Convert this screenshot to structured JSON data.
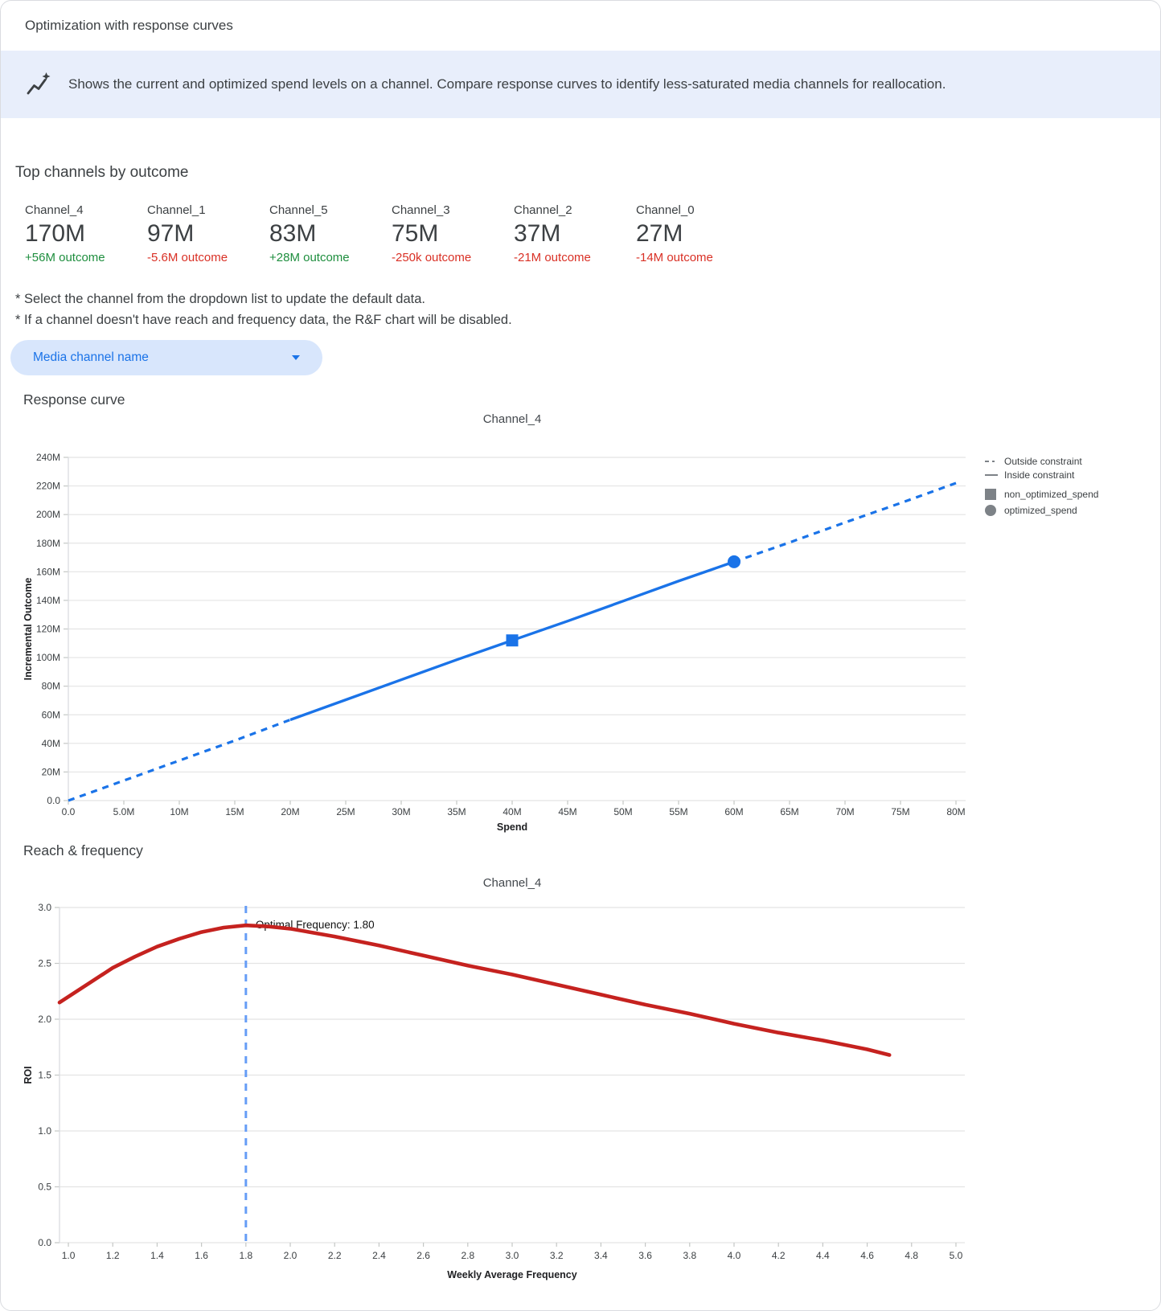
{
  "window": {
    "title": "Optimization with response curves"
  },
  "banner": {
    "icon": "insights-icon",
    "text": "Shows the current and optimized spend levels on a channel. Compare response curves to identify less-saturated media channels for reallocation."
  },
  "top_channels": {
    "heading": "Top channels by outcome",
    "cards": [
      {
        "name": "Channel_4",
        "value": "170M",
        "outcome": "+56M outcome",
        "direction": "positive"
      },
      {
        "name": "Channel_1",
        "value": "97M",
        "outcome": "-5.6M outcome",
        "direction": "negative"
      },
      {
        "name": "Channel_5",
        "value": "83M",
        "outcome": "+28M outcome",
        "direction": "positive"
      },
      {
        "name": "Channel_3",
        "value": "75M",
        "outcome": "-250k outcome",
        "direction": "negative"
      },
      {
        "name": "Channel_2",
        "value": "37M",
        "outcome": "-21M outcome",
        "direction": "negative"
      },
      {
        "name": "Channel_0",
        "value": "27M",
        "outcome": "-14M outcome",
        "direction": "negative"
      }
    ]
  },
  "notes": [
    "* Select the channel from the dropdown list to update the default data.",
    "* If a channel doesn't have reach and frequency data, the R&F chart will be disabled."
  ],
  "dropdown": {
    "label": "Media channel name",
    "icon": "chevron-down-icon"
  },
  "sections": {
    "response_curve": "Response curve",
    "reach_frequency": "Reach & frequency"
  },
  "colors": {
    "accent_blue": "#1a73e8",
    "banner_bg": "#e8eefb",
    "positive_green": "#1e8e3e",
    "negative_red": "#d93025",
    "response_line": "#1a73e8",
    "roi_line": "#c5221f",
    "optimal_freq_line": "#669df6",
    "legend_gray": "#7d8287"
  },
  "chart_data": [
    {
      "type": "line",
      "title": "Channel_4",
      "xlabel": "Spend",
      "ylabel": "Incremental Outcome",
      "unit": "millions",
      "xlim": [
        0,
        80
      ],
      "ylim": [
        0,
        240
      ],
      "x_ticks": [
        {
          "v": 0,
          "label": "0.0"
        },
        {
          "v": 5,
          "label": "5.0M"
        },
        {
          "v": 10,
          "label": "10M"
        },
        {
          "v": 15,
          "label": "15M"
        },
        {
          "v": 20,
          "label": "20M"
        },
        {
          "v": 25,
          "label": "25M"
        },
        {
          "v": 30,
          "label": "30M"
        },
        {
          "v": 35,
          "label": "35M"
        },
        {
          "v": 40,
          "label": "40M"
        },
        {
          "v": 45,
          "label": "45M"
        },
        {
          "v": 50,
          "label": "50M"
        },
        {
          "v": 55,
          "label": "55M"
        },
        {
          "v": 60,
          "label": "60M"
        },
        {
          "v": 65,
          "label": "65M"
        },
        {
          "v": 70,
          "label": "70M"
        },
        {
          "v": 75,
          "label": "75M"
        },
        {
          "v": 80,
          "label": "80M"
        }
      ],
      "y_ticks": [
        {
          "v": 0,
          "label": "0.0"
        },
        {
          "v": 20,
          "label": "20M"
        },
        {
          "v": 40,
          "label": "40M"
        },
        {
          "v": 60,
          "label": "60M"
        },
        {
          "v": 80,
          "label": "80M"
        },
        {
          "v": 100,
          "label": "100M"
        },
        {
          "v": 120,
          "label": "120M"
        },
        {
          "v": 140,
          "label": "140M"
        },
        {
          "v": 160,
          "label": "160M"
        },
        {
          "v": 180,
          "label": "180M"
        },
        {
          "v": 200,
          "label": "200M"
        },
        {
          "v": 220,
          "label": "220M"
        },
        {
          "v": 240,
          "label": "240M"
        }
      ],
      "curve_points": [
        [
          0,
          0
        ],
        [
          5,
          14
        ],
        [
          10,
          28
        ],
        [
          15,
          42
        ],
        [
          20,
          56.5
        ],
        [
          25,
          70.5
        ],
        [
          30,
          84.5
        ],
        [
          35,
          98.5
        ],
        [
          40,
          112
        ],
        [
          45,
          125.5
        ],
        [
          50,
          139.5
        ],
        [
          55,
          153.5
        ],
        [
          60,
          167
        ],
        [
          65,
          180.5
        ],
        [
          70,
          194.5
        ],
        [
          75,
          208
        ],
        [
          80,
          222
        ]
      ],
      "constraint_range": [
        20,
        60
      ],
      "points": {
        "non_optimized_spend": {
          "spend": 40,
          "outcome": 112
        },
        "optimized_spend": {
          "spend": 60,
          "outcome": 167
        }
      },
      "legend": [
        {
          "label": "Outside constraint",
          "symbol": "dash"
        },
        {
          "label": "Inside constraint",
          "symbol": "line"
        },
        {
          "label": "non_optimized_spend",
          "symbol": "square"
        },
        {
          "label": "optimized_spend",
          "symbol": "circle"
        }
      ],
      "line_color": "#1a73e8"
    },
    {
      "type": "line",
      "title": "Channel_4",
      "xlabel": "Weekly Average Frequency",
      "ylabel": "ROI",
      "xlim": [
        0.96,
        5.04
      ],
      "ylim": [
        0,
        3
      ],
      "x_ticks": [
        {
          "v": 1.0,
          "label": "1.0"
        },
        {
          "v": 1.2,
          "label": "1.2"
        },
        {
          "v": 1.4,
          "label": "1.4"
        },
        {
          "v": 1.6,
          "label": "1.6"
        },
        {
          "v": 1.8,
          "label": "1.8"
        },
        {
          "v": 2.0,
          "label": "2.0"
        },
        {
          "v": 2.2,
          "label": "2.2"
        },
        {
          "v": 2.4,
          "label": "2.4"
        },
        {
          "v": 2.6,
          "label": "2.6"
        },
        {
          "v": 2.8,
          "label": "2.8"
        },
        {
          "v": 3.0,
          "label": "3.0"
        },
        {
          "v": 3.2,
          "label": "3.2"
        },
        {
          "v": 3.4,
          "label": "3.4"
        },
        {
          "v": 3.6,
          "label": "3.6"
        },
        {
          "v": 3.8,
          "label": "3.8"
        },
        {
          "v": 4.0,
          "label": "4.0"
        },
        {
          "v": 4.2,
          "label": "4.2"
        },
        {
          "v": 4.4,
          "label": "4.4"
        },
        {
          "v": 4.6,
          "label": "4.6"
        },
        {
          "v": 4.8,
          "label": "4.8"
        },
        {
          "v": 5.0,
          "label": "5.0"
        }
      ],
      "y_ticks": [
        {
          "v": 0,
          "label": "0.0"
        },
        {
          "v": 0.5,
          "label": "0.5"
        },
        {
          "v": 1.0,
          "label": "1.0"
        },
        {
          "v": 1.5,
          "label": "1.5"
        },
        {
          "v": 2.0,
          "label": "2.0"
        },
        {
          "v": 2.5,
          "label": "2.5"
        },
        {
          "v": 3.0,
          "label": "3.0"
        }
      ],
      "curve_points": [
        [
          0.96,
          2.15
        ],
        [
          1.1,
          2.33
        ],
        [
          1.2,
          2.46
        ],
        [
          1.3,
          2.56
        ],
        [
          1.4,
          2.65
        ],
        [
          1.5,
          2.72
        ],
        [
          1.6,
          2.78
        ],
        [
          1.7,
          2.82
        ],
        [
          1.8,
          2.84
        ],
        [
          1.9,
          2.83
        ],
        [
          2.0,
          2.81
        ],
        [
          2.2,
          2.74
        ],
        [
          2.4,
          2.66
        ],
        [
          2.6,
          2.57
        ],
        [
          2.8,
          2.48
        ],
        [
          3.0,
          2.4
        ],
        [
          3.2,
          2.31
        ],
        [
          3.4,
          2.22
        ],
        [
          3.6,
          2.13
        ],
        [
          3.8,
          2.05
        ],
        [
          4.0,
          1.96
        ],
        [
          4.2,
          1.88
        ],
        [
          4.4,
          1.81
        ],
        [
          4.6,
          1.73
        ],
        [
          4.7,
          1.68
        ]
      ],
      "optimal_frequency": 1.8,
      "annotation": "Optimal Frequency: 1.80",
      "line_color": "#c5221f",
      "optimal_line_color": "#669df6"
    }
  ]
}
